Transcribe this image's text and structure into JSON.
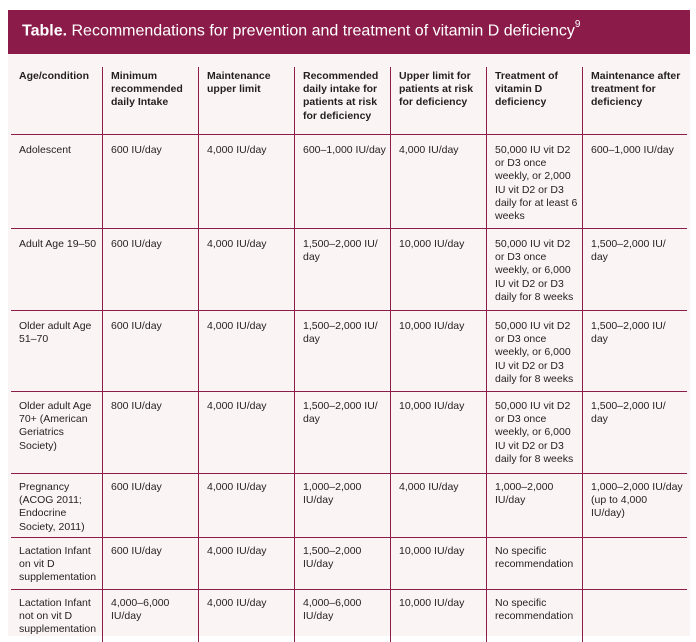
{
  "title": {
    "lead": "Table.",
    "text": " Recommendations for prevention and treatment of vitamin D deficiency",
    "ref": "9"
  },
  "columns": [
    "Age/condition",
    "Minimum recommended daily Intake",
    "Maintenance upper limit",
    "Recommended daily intake for patients at risk for deficiency",
    "Upper limit for patients at risk for deficiency",
    "Treatment of vitamin D deficiency",
    "Maintenance after treatment for deficiency"
  ],
  "rows": [
    [
      "Adolescent",
      "600 IU/day",
      "4,000 IU/day",
      "600–1,000 IU/day",
      "4,000 IU/day",
      "50,000 IU vit D2 or D3 once weekly, or 2,000 IU vit D2 or D3 daily for at least 6 weeks",
      "600–1,000 IU/day"
    ],
    [
      "Adult Age 19–50",
      "600 IU/day",
      "4,000 IU/day",
      "1,500–2,000 IU/ day",
      "10,000 IU/day",
      "50,000 IU vit D2 or D3 once weekly, or 6,000 IU vit D2 or D3 daily for 8 weeks",
      "1,500–2,000 IU/ day"
    ],
    [
      "Older adult Age 51–70",
      "600 IU/day",
      "4,000 IU/day",
      "1,500–2,000 IU/ day",
      "10,000 IU/day",
      "50,000 IU vit D2 or D3 once weekly, or 6,000 IU vit D2 or D3 daily for 8 weeks",
      "1,500–2,000 IU/ day"
    ],
    [
      "Older adult Age 70+ (American Geriatrics Society)",
      "800 IU/day",
      "4,000 IU/day",
      "1,500–2,000 IU/ day",
      "10,000 IU/day",
      "50,000 IU vit D2 or D3 once weekly, or 6,000 IU vit D2 or D3 daily for 8 weeks",
      "1,500–2,000 IU/ day"
    ],
    [
      "Pregnancy (ACOG 2011; Endocrine Society, 2011)",
      "600 IU/day",
      "4,000 IU/day",
      "1,000–2,000 IU/day",
      "4,000 IU/day",
      "1,000–2,000 IU/day",
      "1,000–2,000 IU/day (up to 4,000 IU/day)"
    ],
    [
      "Lactation Infant on vit D supplementation",
      "600 IU/day",
      "4,000 IU/day",
      "1,500–2,000 IU/day",
      "10,000 IU/day",
      "No specific recommendation",
      ""
    ],
    [
      "Lactation Infant not on vit D supplementation",
      "4,000–6,000 IU/day",
      "4,000 IU/day",
      "4,000–6,000 IU/day",
      "10,000 IU/day",
      "No specific recommendation",
      ""
    ]
  ],
  "colors": {
    "accent": "#8b1c4a",
    "panel": "#fbf4f5",
    "text": "#231f20"
  }
}
